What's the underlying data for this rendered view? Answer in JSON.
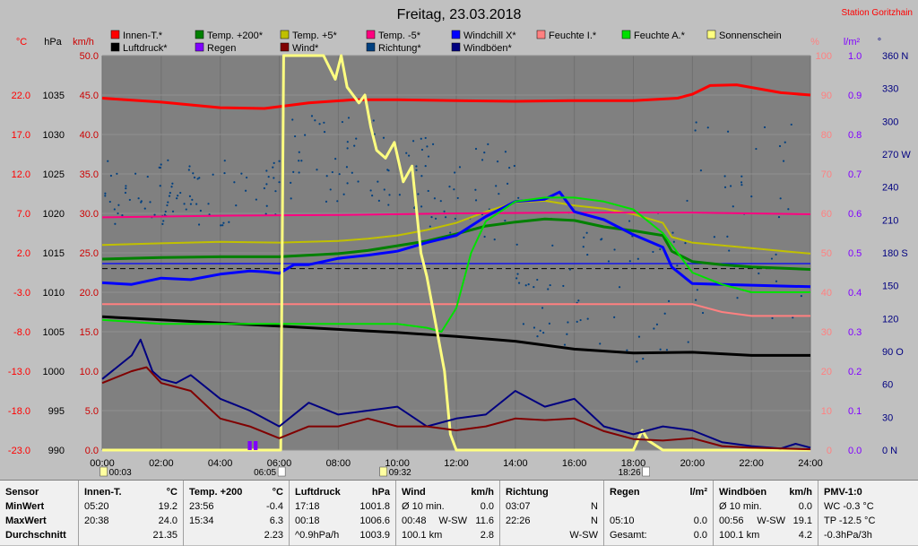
{
  "chart_data": {
    "type": "line",
    "title": "Freitag, 23.03.2018",
    "station": "Station Goritzhain",
    "x_tick_labels": [
      "00:00",
      "02:00",
      "04:00",
      "06:00",
      "08:00",
      "10:00",
      "12:00",
      "14:00",
      "16:00",
      "18:00",
      "20:00",
      "22:00",
      "24:00"
    ],
    "xlim": [
      0,
      24
    ],
    "axes": {
      "temp_c": {
        "unit": "°C",
        "ticks": [
          "22.0",
          "17.0",
          "12.0",
          "7.0",
          "2.0",
          "-3.0",
          "-8.0",
          "-13.0",
          "-18.0",
          "-23.0"
        ],
        "range": [
          -23,
          27
        ],
        "color": "#ff0000"
      },
      "pressure_hpa": {
        "unit": "hPa",
        "ticks": [
          "1035",
          "1030",
          "1025",
          "1020",
          "1015",
          "1010",
          "1005",
          "1000",
          "995",
          "990"
        ],
        "range": [
          990,
          1040
        ],
        "color": "#000000"
      },
      "wind_kmh": {
        "unit": "km/h",
        "ticks": [
          "50.0",
          "45.0",
          "40.0",
          "35.0",
          "30.0",
          "25.0",
          "20.0",
          "15.0",
          "10.0",
          "5.0",
          "0.0"
        ],
        "range": [
          0,
          50
        ],
        "color": "#cc0000"
      },
      "humidity_pct": {
        "unit": "%",
        "ticks": [
          "100",
          "90",
          "80",
          "70",
          "60",
          "50",
          "40",
          "30",
          "20",
          "10",
          "0"
        ],
        "range": [
          0,
          100
        ],
        "color": "#ff8080"
      },
      "rain_lm2": {
        "unit": "l/m²",
        "ticks": [
          "1.0",
          "0.9",
          "0.8",
          "0.7",
          "0.6",
          "0.5",
          "0.4",
          "0.3",
          "0.2",
          "0.1",
          "0.0"
        ],
        "range": [
          0,
          1
        ],
        "color": "#8000ff"
      },
      "direction_deg": {
        "unit": "°",
        "ticks": [
          "360 N",
          "330",
          "300",
          "270 W",
          "240",
          "210",
          "180 S",
          "150",
          "120",
          "90 O",
          "60",
          "30",
          "0 N"
        ],
        "range": [
          0,
          360
        ],
        "color": "#000080"
      }
    },
    "legend": [
      {
        "name": "Innen-T.*",
        "color": "#ff0000"
      },
      {
        "name": "Luftdruck*",
        "color": "#000000"
      },
      {
        "name": "Temp. +200*",
        "color": "#008000"
      },
      {
        "name": "Regen",
        "color": "#8000ff"
      },
      {
        "name": "Temp. +5*",
        "color": "#c0c000"
      },
      {
        "name": "Wind*",
        "color": "#800000"
      },
      {
        "name": "Temp. -5*",
        "color": "#ff0080"
      },
      {
        "name": "Richtung*",
        "color": "#004080"
      },
      {
        "name": "Windchill X*",
        "color": "#0000ff"
      },
      {
        "name": "Windböen*",
        "color": "#000080"
      },
      {
        "name": "Feuchte I.*",
        "color": "#ff8080"
      },
      {
        "name": "Feuchte A.*",
        "color": "#00e000"
      },
      {
        "name": "Sonnenschein",
        "color": "#ffff80"
      }
    ],
    "sun_markers": [
      {
        "time": "00:03",
        "x": 0.05
      },
      {
        "time": "06:05",
        "x": 6.08
      },
      {
        "time": "09:32",
        "x": 9.53
      },
      {
        "time": "18:26",
        "x": 18.43
      }
    ],
    "series": [
      {
        "name": "Innen-T.*",
        "axis": "temp_c",
        "color": "#ff0000",
        "width": 3,
        "x": [
          0,
          2,
          4,
          5.5,
          7,
          8.5,
          10,
          12,
          14,
          16,
          18,
          19.5,
          20,
          20.6,
          21.5,
          23,
          24
        ],
        "y": [
          21.6,
          21.1,
          20.4,
          20.3,
          21.0,
          21.4,
          21.4,
          21.3,
          21.2,
          21.3,
          21.3,
          21.6,
          22.1,
          23.2,
          23.3,
          22.3,
          22.0
        ]
      },
      {
        "name": "Luftdruck*",
        "axis": "pressure_hpa",
        "color": "#000000",
        "width": 3,
        "x": [
          0,
          2,
          4,
          6,
          8,
          10,
          12,
          14,
          16,
          18,
          20,
          22,
          24
        ],
        "y": [
          1006.9,
          1006.5,
          1006.1,
          1005.7,
          1005.3,
          1004.9,
          1004.4,
          1003.8,
          1002.8,
          1002.3,
          1002.4,
          1002.0,
          1002.0
        ]
      },
      {
        "name": "Temp. +200*",
        "axis": "temp_c",
        "color": "#008000",
        "width": 3,
        "x": [
          0,
          2,
          4,
          6,
          8,
          9,
          10,
          11,
          12,
          13,
          14,
          15,
          16,
          17,
          18,
          19,
          19.3,
          20,
          21,
          22,
          24
        ],
        "y": [
          1.2,
          1.4,
          1.5,
          1.5,
          1.9,
          2.3,
          2.9,
          3.5,
          4.4,
          5.4,
          5.9,
          6.3,
          6.1,
          5.3,
          4.8,
          4.2,
          2.2,
          0.9,
          0.5,
          0.2,
          -0.1
        ]
      },
      {
        "name": "Temp. +5*",
        "axis": "temp_c",
        "color": "#c0c000",
        "width": 2,
        "x": [
          0,
          2,
          4,
          6,
          8,
          9,
          10,
          11,
          12,
          13,
          14,
          15,
          16,
          17,
          18,
          19,
          19.3,
          20,
          22,
          24
        ],
        "y": [
          3.0,
          3.2,
          3.4,
          3.3,
          3.5,
          3.8,
          4.2,
          4.9,
          5.8,
          7.2,
          8.4,
          8.6,
          8.0,
          7.6,
          6.9,
          5.8,
          4.0,
          3.3,
          2.6,
          1.9
        ]
      },
      {
        "name": "Temp. -5*",
        "axis": "temp_c",
        "color": "#ff0080",
        "width": 2,
        "x": [
          0,
          4,
          8,
          12,
          16,
          20,
          24
        ],
        "y": [
          6.5,
          6.7,
          6.8,
          7.0,
          7.1,
          7.1,
          6.9
        ]
      },
      {
        "name": "Windchill X*",
        "axis": "temp_c",
        "color": "#0000ff",
        "width": 3,
        "x": [
          0,
          1,
          2,
          3,
          4,
          5,
          5.5,
          6,
          6.5,
          7,
          8,
          9,
          10,
          11,
          12,
          13,
          14,
          15,
          15.5,
          16,
          17,
          18,
          19,
          19.3,
          20,
          21,
          22,
          24
        ],
        "y": [
          -1.8,
          -2.0,
          -1.2,
          -1.4,
          -0.7,
          -0.3,
          -0.4,
          -0.6,
          0.5,
          0.5,
          1.3,
          1.7,
          2.2,
          3.3,
          4.2,
          6.6,
          8.5,
          8.8,
          9.7,
          7.2,
          6.2,
          4.3,
          2.7,
          0.2,
          -1.9,
          -2.0,
          -2.1,
          -2.3
        ]
      },
      {
        "name": "Feuchte I.*",
        "axis": "humidity_pct",
        "color": "#ff8080",
        "width": 2,
        "x": [
          0,
          2,
          4,
          6,
          8,
          10,
          12,
          14,
          16,
          18,
          19,
          20,
          21,
          22,
          24
        ],
        "y": [
          37,
          37,
          37,
          37,
          37,
          37,
          37,
          37,
          37,
          37,
          37,
          37,
          35,
          34,
          34
        ]
      },
      {
        "name": "Feuchte A.*",
        "axis": "humidity_pct",
        "color": "#00e000",
        "width": 2,
        "x": [
          0,
          2,
          4,
          6,
          8,
          10,
          11,
          11.5,
          12,
          12.5,
          13,
          14,
          15,
          16,
          17,
          18,
          19,
          20,
          21,
          22,
          24
        ],
        "y": [
          33,
          32,
          32,
          32,
          32,
          32,
          31,
          30,
          36,
          50,
          58,
          63,
          64,
          64,
          63,
          61,
          55,
          45,
          42,
          40,
          40
        ]
      },
      {
        "name": "Sonnenschein",
        "axis": "wind_kmh",
        "color": "#ffff80",
        "width": 3,
        "x": [
          0,
          6.05,
          6.15,
          7.5,
          7.9,
          8.1,
          8.3,
          8.7,
          8.9,
          9.1,
          9.3,
          9.6,
          9.9,
          10.2,
          10.5,
          10.8,
          11.0,
          11.3,
          11.6,
          11.8,
          12,
          18,
          18.3,
          18.5,
          19,
          24
        ],
        "y": [
          0,
          0,
          50,
          50,
          47,
          50,
          46,
          44,
          45,
          41,
          38,
          37,
          39,
          34,
          36,
          25,
          22,
          16,
          10,
          2,
          0,
          0,
          2.5,
          1.2,
          0,
          0
        ]
      },
      {
        "name": "Windböen*",
        "axis": "wind_kmh",
        "color": "#000080",
        "width": 2,
        "x": [
          0,
          1,
          1.3,
          1.7,
          2,
          2.5,
          3,
          4,
          5,
          5.5,
          6,
          7,
          8,
          9,
          10,
          11,
          12,
          13,
          14,
          15,
          16,
          17,
          18,
          19,
          20,
          21,
          22,
          23,
          23.5,
          24
        ],
        "y": [
          9,
          12,
          14,
          10,
          9,
          8.5,
          9.5,
          6.5,
          5,
          4,
          3,
          6,
          4.5,
          5,
          5.5,
          3,
          4,
          4.5,
          7.5,
          5.5,
          6.5,
          3,
          2,
          3,
          2.5,
          1,
          0.5,
          0.2,
          0.8,
          0.3
        ]
      },
      {
        "name": "Wind*",
        "axis": "wind_kmh",
        "color": "#800000",
        "width": 2,
        "x": [
          0,
          1,
          1.5,
          2,
          3,
          4,
          5,
          6,
          7,
          8,
          9,
          10,
          11,
          12,
          13,
          14,
          15,
          16,
          17,
          18,
          19,
          20,
          21,
          22,
          24
        ],
        "y": [
          8.5,
          10,
          10.5,
          8.5,
          7.5,
          4,
          3,
          1.5,
          3,
          3,
          4,
          3,
          3,
          2.5,
          3,
          4,
          3.8,
          4,
          2.4,
          1.4,
          1.2,
          1.5,
          0.5,
          0.3,
          0.1
        ]
      },
      {
        "name": "Regen",
        "axis": "rain_lm2",
        "color": "#8000ff",
        "width": 3,
        "x": [
          4.98,
          5.02,
          5.18,
          5.22
        ],
        "y": [
          0.02,
          0.02,
          0.02,
          0.02
        ]
      }
    ]
  },
  "stats": {
    "columns": [
      {
        "title": "Sensor",
        "rows": [
          "MinWert",
          "MaxWert",
          "Durchschnitt"
        ]
      },
      {
        "title": "Innen-T.",
        "unit": "°C",
        "rows": [
          [
            "05:20",
            "",
            "19.2"
          ],
          [
            "20:38",
            "",
            "24.0"
          ],
          [
            "",
            "",
            "21.35"
          ]
        ]
      },
      {
        "title": "Temp. +200",
        "unit": "°C",
        "rows": [
          [
            "23:56",
            "",
            "-0.4"
          ],
          [
            "15:34",
            "",
            "6.3"
          ],
          [
            "",
            "",
            "2.23"
          ]
        ]
      },
      {
        "title": "Luftdruck",
        "unit": "hPa",
        "rows": [
          [
            "17:18",
            "",
            "1001.8"
          ],
          [
            "00:18",
            "",
            "1006.6"
          ],
          [
            "^0.9hPa/h",
            "",
            "1003.9"
          ]
        ]
      },
      {
        "title": "Wind",
        "unit": "km/h",
        "rows": [
          [
            "Ø 10 min.",
            "",
            "0.0"
          ],
          [
            "00:48",
            "W-SW",
            "11.6"
          ],
          [
            "100.1 km",
            "",
            "2.8"
          ]
        ]
      },
      {
        "title": "Richtung",
        "unit": "",
        "rows": [
          [
            "03:07",
            "",
            "N"
          ],
          [
            "22:26",
            "",
            "N"
          ],
          [
            "",
            "",
            "W-SW"
          ]
        ]
      },
      {
        "title": "Regen",
        "unit": "l/m²",
        "rows": [
          [
            "",
            "",
            ""
          ],
          [
            "05:10",
            "",
            "0.0"
          ],
          [
            "Gesamt:",
            "",
            "0.0"
          ]
        ]
      },
      {
        "title": "Windböen",
        "unit": "km/h",
        "rows": [
          [
            "Ø 10 min.",
            "",
            "0.0"
          ],
          [
            "00:56",
            "W-SW",
            "19.1"
          ],
          [
            "100.1 km",
            "",
            "4.2"
          ]
        ]
      },
      {
        "title": "PMV-1:0",
        "unit": "",
        "rows": [
          [
            "WC -0.3 °C",
            "",
            ""
          ],
          [
            "TP -12.5 °C",
            "",
            ""
          ],
          [
            "-0.3hPa/3h",
            "",
            ""
          ]
        ]
      }
    ]
  }
}
